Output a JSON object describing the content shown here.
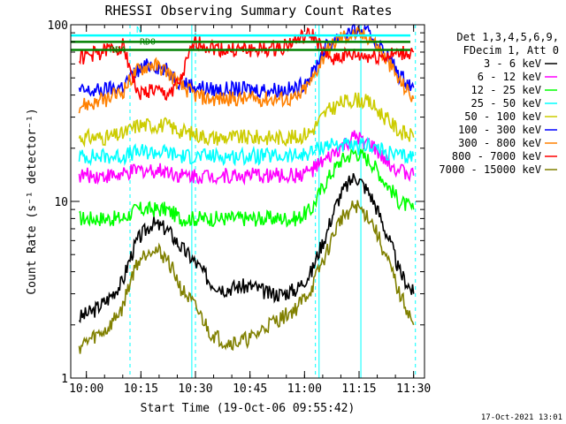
{
  "chart_data": {
    "type": "line",
    "title": "RHESSI Observing Summary Count Rates",
    "xlabel": "Start Time (19-Oct-06 09:55:42)",
    "ylabel": "Count Rate (s⁻¹ detector⁻¹)",
    "y_scale": "log",
    "ylim": [
      1,
      100
    ],
    "xlim": [
      "09:55:42",
      "11:33:00"
    ],
    "x_ticks": [
      "10:00",
      "10:15",
      "10:30",
      "10:45",
      "11:00",
      "11:15",
      "11:30"
    ],
    "y_ticks": [
      "1",
      "10",
      "100"
    ],
    "legend_title": [
      "Det 1,3,4,5,6,9,",
      "FDecim 1, Att 0"
    ],
    "legend_position": "right",
    "footer_date": "17-Oct-2021 13:01",
    "flags": [
      {
        "label": "N",
        "color": "#00ffff"
      },
      {
        "label": "RD0",
        "color": "#008000"
      },
      {
        "label": "RD4",
        "color": "#008000"
      }
    ],
    "flag_levels": [
      {
        "label": "N",
        "y": 87,
        "color": "#00ffff"
      },
      {
        "label": "RD0",
        "y": 80,
        "color": "#008000"
      },
      {
        "label": "RD4",
        "y": 72,
        "color": "#008000"
      }
    ],
    "vertical_markers": {
      "solid_cyan": [
        "09:55:42",
        "10:29:00",
        "11:04:00",
        "11:15:30"
      ],
      "dashed_cyan": [
        "10:12:00",
        "10:30:00",
        "11:03:00",
        "11:30:30"
      ]
    },
    "x": [
      "09:58",
      "10:02",
      "10:06",
      "10:10",
      "10:14",
      "10:18",
      "10:22",
      "10:26",
      "10:30",
      "10:34",
      "10:38",
      "10:42",
      "10:46",
      "10:50",
      "10:54",
      "10:58",
      "11:02",
      "11:06",
      "11:10",
      "11:14",
      "11:18",
      "11:22",
      "11:26",
      "11:30"
    ],
    "series": [
      {
        "name": "3 - 6 keV",
        "color": "#000000",
        "values": [
          2.2,
          2.4,
          2.8,
          3.5,
          6.0,
          7.5,
          7.0,
          5.5,
          4.5,
          3.5,
          3.2,
          3.3,
          3.3,
          3.0,
          3.0,
          3.2,
          4.0,
          6.5,
          11.0,
          14.0,
          11.0,
          7.0,
          4.0,
          3.0
        ]
      },
      {
        "name": "6 - 12 keV",
        "color": "#ff00ff",
        "values": [
          14,
          14,
          14,
          14,
          15,
          15,
          15,
          14,
          14,
          14,
          14,
          14,
          14,
          14,
          14,
          14,
          15,
          17,
          20,
          23,
          21,
          17,
          15,
          14
        ]
      },
      {
        "name": "12 - 25 keV",
        "color": "#00ff00",
        "values": [
          8,
          8,
          8,
          8,
          9,
          9,
          9,
          8,
          8,
          8,
          8,
          8,
          8,
          8,
          8,
          8,
          9,
          13,
          17,
          19,
          17,
          13,
          10,
          9
        ]
      },
      {
        "name": "25 - 50 keV",
        "color": "#00ffff",
        "values": [
          18,
          18,
          18,
          18,
          19,
          19,
          19,
          18,
          18,
          18,
          18,
          18,
          18,
          18,
          18,
          18,
          19,
          21,
          21,
          20,
          21,
          19,
          18,
          18
        ]
      },
      {
        "name": "50 - 100 keV",
        "color": "#cccc00",
        "values": [
          23,
          23,
          23,
          24,
          27,
          27,
          27,
          25,
          24,
          23,
          23,
          23,
          23,
          23,
          23,
          23,
          25,
          32,
          36,
          38,
          36,
          30,
          25,
          23
        ]
      },
      {
        "name": "100 - 300 keV",
        "color": "#0000ff",
        "values": [
          42,
          42,
          43,
          45,
          55,
          60,
          55,
          47,
          45,
          43,
          43,
          43,
          43,
          43,
          43,
          43,
          52,
          75,
          88,
          92,
          88,
          70,
          52,
          44
        ]
      },
      {
        "name": "300 - 800 keV",
        "color": "#ff8000",
        "values": [
          35,
          36,
          38,
          42,
          55,
          60,
          55,
          45,
          40,
          38,
          38,
          38,
          38,
          38,
          38,
          38,
          48,
          70,
          85,
          88,
          85,
          65,
          48,
          38
        ]
      },
      {
        "name": "800 - 7000 keV",
        "color": "#ff0000",
        "values": [
          65,
          68,
          72,
          76,
          40,
          43,
          40,
          48,
          80,
          75,
          72,
          72,
          72,
          72,
          75,
          82,
          88,
          65,
          66,
          67,
          66,
          66,
          68,
          70
        ]
      },
      {
        "name": "7000 - 15000 keV",
        "color": "#808000",
        "values": [
          1.5,
          1.7,
          1.9,
          2.5,
          4.5,
          5.5,
          4.8,
          3.2,
          2.5,
          1.8,
          1.6,
          1.6,
          1.7,
          2.0,
          2.2,
          2.5,
          3.2,
          5.0,
          8.0,
          9.5,
          8.0,
          5.0,
          3.0,
          2.0
        ]
      }
    ]
  }
}
